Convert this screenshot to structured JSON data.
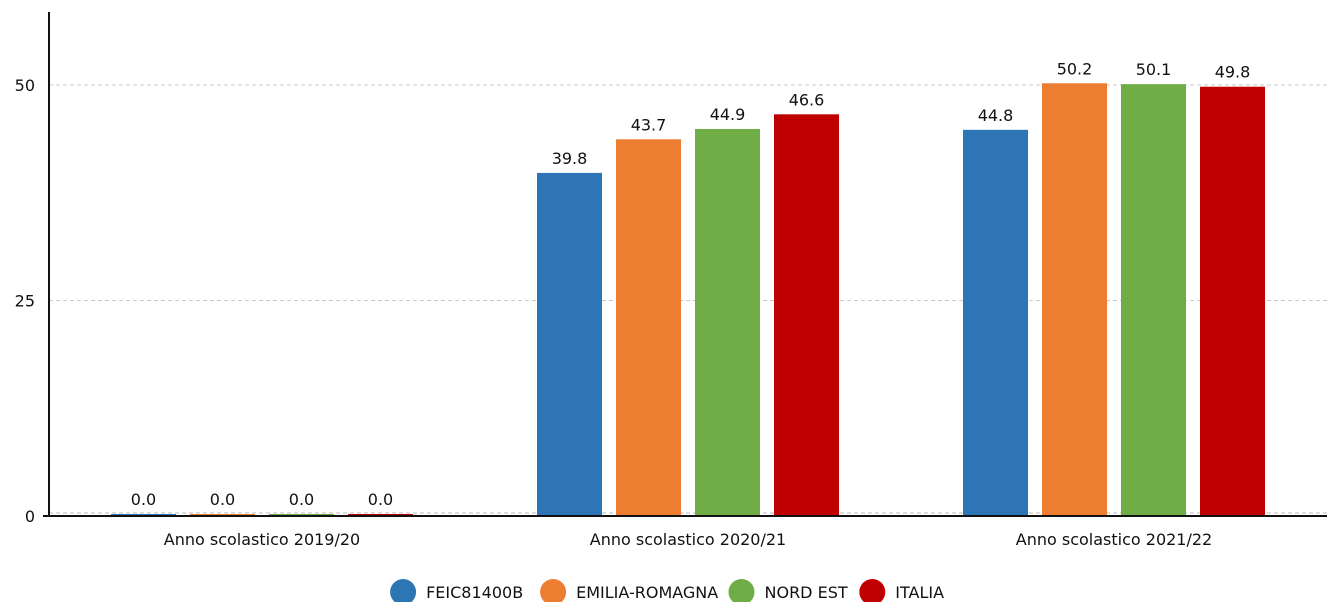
{
  "chart_data": {
    "type": "bar",
    "categories": [
      "Anno scolastico 2019/20",
      "Anno scolastico 2020/21",
      "Anno scolastico 2021/22"
    ],
    "series": [
      {
        "name": "FEIC81400B",
        "values": [
          0.0,
          39.8,
          44.8
        ],
        "color": "#2e75b6"
      },
      {
        "name": "EMILIA-ROMAGNA",
        "values": [
          0.0,
          43.7,
          50.2
        ],
        "color": "#ed7d31"
      },
      {
        "name": "NORD EST",
        "values": [
          0.0,
          44.9,
          50.1
        ],
        "color": "#70ad47"
      },
      {
        "name": "ITALIA",
        "values": [
          0.0,
          46.6,
          49.8
        ],
        "color": "#c00000"
      }
    ],
    "value_labels": [
      [
        "0.0",
        "39.8",
        "44.8"
      ],
      [
        "0.0",
        "43.7",
        "50.2"
      ],
      [
        "0.0",
        "44.9",
        "50.1"
      ],
      [
        "0.0",
        "46.6",
        "49.8"
      ]
    ],
    "y_ticks": [
      0,
      25,
      50
    ],
    "ylim": [
      0,
      58
    ],
    "title": "",
    "xlabel": "",
    "ylabel": "",
    "grid": "horizontal dashed",
    "legend_position": "bottom"
  }
}
